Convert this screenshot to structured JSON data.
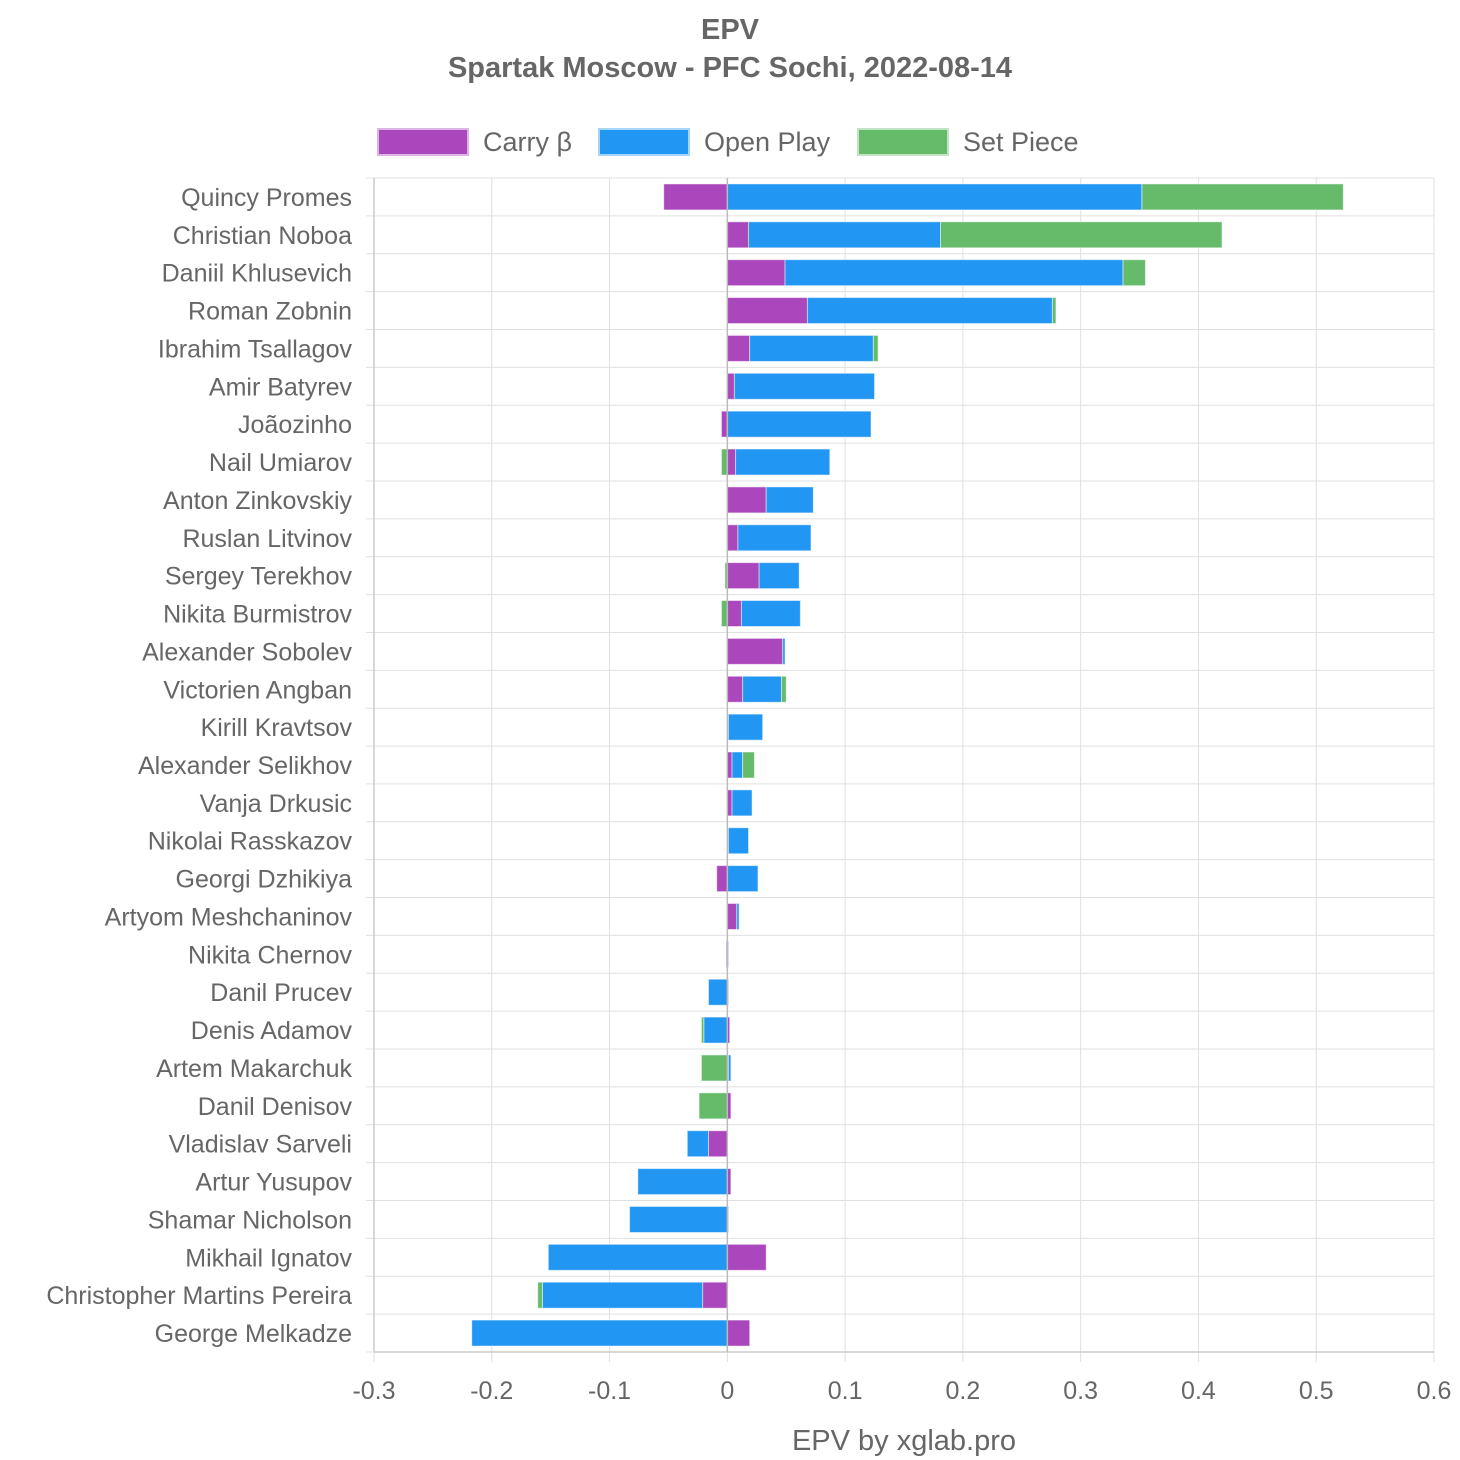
{
  "chart_data": {
    "type": "bar",
    "orientation": "horizontal",
    "stacked": true,
    "title": "EPV",
    "subtitle": "Spartak Moscow - PFC Sochi, 2022-08-14",
    "xlabel": "EPV by xglab.pro",
    "xlim": [
      -0.3,
      0.6
    ],
    "xticks": [
      "-0.3",
      "-0.2",
      "-0.1",
      "0",
      "0.1",
      "0.2",
      "0.3",
      "0.4",
      "0.5",
      "0.6"
    ],
    "grid": true,
    "legend_position": "top",
    "categories": [
      "Quincy Promes",
      "Christian Noboa",
      "Daniil Khlusevich",
      "Roman Zobnin",
      "Ibrahim Tsallagov",
      "Amir Batyrev",
      "Joãozinho",
      "Nail Umiarov",
      "Anton Zinkovskiy",
      "Ruslan Litvinov",
      "Sergey Terekhov",
      "Nikita Burmistrov",
      "Alexander Sobolev",
      "Victorien Angban",
      "Kirill Kravtsov",
      "Alexander Selikhov",
      "Vanja Drkusic",
      "Nikolai Rasskazov",
      "Georgi Dzhikiya",
      "Artyom Meshchaninov",
      "Nikita Chernov",
      "Danil Prucev",
      "Denis Adamov",
      "Artem Makarchuk",
      "Danil Denisov",
      "Vladislav Sarveli",
      "Artur Yusupov",
      "Shamar Nicholson",
      "Mikhail Ignatov",
      "Christopher Martins Pereira",
      "George Melkadze"
    ],
    "series": [
      {
        "name": "Carry β",
        "color": "#ab47bc",
        "values": [
          -0.054,
          0.018,
          0.049,
          0.068,
          0.019,
          0.006,
          -0.005,
          0.007,
          0.033,
          0.009,
          0.027,
          0.012,
          0.047,
          0.013,
          0.001,
          0.004,
          0.004,
          0.001,
          -0.009,
          0.008,
          -0.001,
          0.001,
          0.002,
          0.001,
          0.003,
          -0.016,
          0.003,
          0.001,
          0.033,
          -0.021,
          0.019
        ]
      },
      {
        "name": "Open Play",
        "color": "#2196f3",
        "values": [
          0.352,
          0.163,
          0.287,
          0.208,
          0.105,
          0.119,
          0.122,
          0.08,
          0.04,
          0.062,
          0.034,
          0.05,
          0.002,
          0.033,
          0.029,
          0.009,
          0.017,
          0.017,
          0.026,
          0.002,
          0.001,
          -0.016,
          -0.02,
          0.002,
          0.0,
          -0.018,
          -0.076,
          -0.083,
          -0.152,
          -0.136,
          -0.217
        ]
      },
      {
        "name": "Set Piece",
        "color": "#66bb6a",
        "values": [
          0.171,
          0.239,
          0.019,
          0.003,
          0.004,
          0.0,
          0.0,
          -0.005,
          0.0,
          0.0,
          -0.002,
          -0.005,
          0.0,
          0.004,
          0.0,
          0.01,
          0.0,
          0.0,
          0.0,
          0.0,
          0.0,
          0.0,
          -0.002,
          -0.022,
          -0.024,
          0.0,
          0.0,
          0.0,
          0.0,
          -0.004,
          0.0
        ]
      }
    ]
  }
}
